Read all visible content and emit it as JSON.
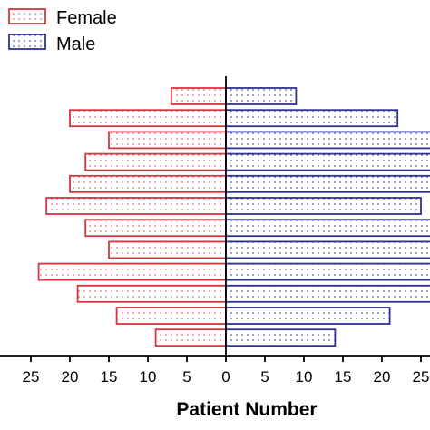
{
  "chart_data": {
    "type": "bar",
    "orientation": "horizontal-population-pyramid",
    "xlabel": "Patient Number",
    "ylabel": "",
    "xlim": [
      -30,
      30
    ],
    "x_ticks": [
      {
        "value": -25,
        "label": "25"
      },
      {
        "value": -20,
        "label": "20"
      },
      {
        "value": -15,
        "label": "15"
      },
      {
        "value": -10,
        "label": "10"
      },
      {
        "value": -5,
        "label": "5"
      },
      {
        "value": 0,
        "label": "0"
      },
      {
        "value": 5,
        "label": "5"
      },
      {
        "value": 10,
        "label": "10"
      },
      {
        "value": 15,
        "label": "15"
      },
      {
        "value": 20,
        "label": "20"
      },
      {
        "value": 25,
        "label": "25"
      }
    ],
    "legend_position": "top-left",
    "series": [
      {
        "name": "Female",
        "side": "left",
        "color": "#d9353f",
        "values": [
          7,
          20,
          15,
          18,
          20,
          23,
          18,
          15,
          24,
          19,
          14,
          9
        ]
      },
      {
        "name": "Male",
        "side": "right",
        "color": "#2e3192",
        "values": [
          9,
          22,
          27,
          27,
          27,
          25,
          27,
          27,
          27,
          27,
          21,
          14
        ]
      }
    ]
  }
}
